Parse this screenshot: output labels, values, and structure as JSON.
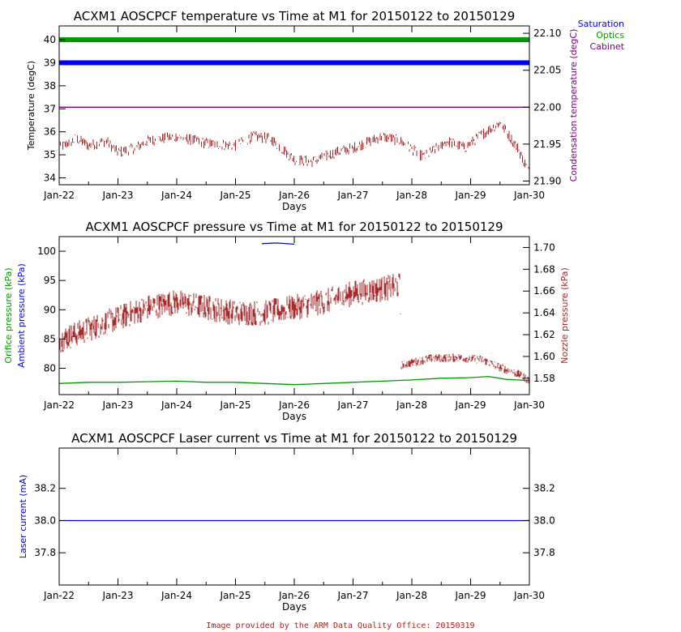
{
  "credit": "Image provided by the ARM Data Quality Office: 20150319",
  "chart_data": [
    {
      "type": "line",
      "title": "ACXM1 AOSCPCF temperature vs Time at M1 for 20150122 to 20150129",
      "xlabel": "Days",
      "ylabel": "Temperature (degC)",
      "y2label": "Condensation temperature (degC)",
      "ylim": [
        33.7,
        40.6
      ],
      "y2lim": [
        21.895,
        22.11
      ],
      "yticks": [
        34,
        35,
        36,
        37,
        38,
        39,
        40
      ],
      "y2ticks": [
        "21.90",
        "21.95",
        "22.00",
        "22.05",
        "22.10"
      ],
      "xlim": [
        0,
        8
      ],
      "xticks": [
        "Jan-22",
        "Jan-23",
        "Jan-24",
        "Jan-25",
        "Jan-26",
        "Jan-27",
        "Jan-28",
        "Jan-29",
        "Jan-30"
      ],
      "legend": [
        "Saturation",
        "Optics",
        "Cabinet"
      ],
      "legend_colors": [
        "#0000ff",
        "#009900",
        "#800080"
      ],
      "legend_position": "top-right outside",
      "grid": false,
      "series": [
        {
          "name": "Saturation",
          "color": "#0000ff",
          "axis": "left",
          "x": [
            0,
            1,
            2,
            3,
            4,
            5,
            6,
            7,
            8
          ],
          "y": [
            39.0,
            39.0,
            39.0,
            39.0,
            39.0,
            39.0,
            39.0,
            39.0,
            39.0
          ]
        },
        {
          "name": "Optics",
          "color": "#009900",
          "axis": "left",
          "x": [
            0,
            1,
            2,
            3,
            4,
            5,
            6,
            7,
            8
          ],
          "y": [
            40.0,
            40.0,
            40.0,
            40.0,
            40.0,
            40.0,
            40.0,
            40.0,
            40.0
          ]
        },
        {
          "name": "Cabinet",
          "color": "#a52a2a",
          "axis": "left",
          "x": [
            0,
            0.3,
            0.5,
            0.8,
            1.0,
            1.3,
            1.5,
            2.0,
            2.5,
            3.0,
            3.3,
            3.6,
            4.0,
            4.3,
            4.7,
            5.0,
            5.5,
            5.8,
            6.2,
            6.6,
            6.9,
            7.2,
            7.5,
            7.8,
            8.0
          ],
          "y": [
            35.3,
            35.7,
            35.4,
            35.6,
            35.1,
            35.3,
            35.6,
            35.8,
            35.5,
            35.4,
            35.8,
            35.7,
            34.8,
            34.7,
            35.1,
            35.3,
            35.8,
            35.6,
            34.9,
            35.6,
            35.3,
            35.9,
            36.4,
            35.3,
            34.2
          ]
        },
        {
          "name": "Condensation",
          "color": "#800080",
          "axis": "right",
          "x": [
            0,
            8
          ],
          "y": [
            22.0,
            22.0
          ]
        }
      ]
    },
    {
      "type": "line",
      "title": "ACXM1 AOSCPCF pressure vs Time at M1 for 20150122 to 20150129",
      "xlabel": "Days",
      "ylabel": "Orifice pressure (kPa)",
      "ylabel2": "Ambient pressure (kPa)",
      "y2label": "Nozzle pressure (kPa)",
      "ylim": [
        75.5,
        102.5
      ],
      "y2lim": [
        1.565,
        1.71
      ],
      "yticks": [
        80,
        85,
        90,
        95,
        100
      ],
      "y2ticks": [
        "1.58",
        "1.60",
        "1.62",
        "1.64",
        "1.66",
        "1.68",
        "1.70"
      ],
      "xlim": [
        0,
        8
      ],
      "xticks": [
        "Jan-22",
        "Jan-23",
        "Jan-24",
        "Jan-25",
        "Jan-26",
        "Jan-27",
        "Jan-28",
        "Jan-29",
        "Jan-30"
      ],
      "grid": false,
      "series": [
        {
          "name": "Ambient pressure",
          "color": "#0000ff",
          "axis": "left",
          "x": [
            3.45,
            3.7,
            4.0
          ],
          "y": [
            101.3,
            101.4,
            101.2
          ]
        },
        {
          "name": "Orifice pressure",
          "color": "#009900",
          "axis": "left",
          "x": [
            0,
            0.5,
            1.0,
            1.5,
            2.0,
            2.5,
            3.0,
            3.5,
            4.0,
            4.5,
            5.0,
            5.5,
            6.0,
            6.5,
            7.0,
            7.3,
            7.6,
            8.0
          ],
          "y": [
            77.4,
            77.6,
            77.6,
            77.7,
            77.8,
            77.6,
            77.6,
            77.4,
            77.2,
            77.4,
            77.6,
            77.8,
            78.0,
            78.3,
            78.4,
            78.6,
            78.1,
            77.9
          ]
        },
        {
          "name": "Nozzle pressure",
          "color": "#a52a2a",
          "axis": "right",
          "x": [
            0,
            0.5,
            1.0,
            1.5,
            2.0,
            2.5,
            3.0,
            3.5,
            4.0,
            4.5,
            5.0,
            5.5,
            5.8,
            5.82,
            6.3,
            6.8,
            7.2,
            7.5,
            7.8,
            8.0
          ],
          "y": [
            1.615,
            1.625,
            1.635,
            1.645,
            1.65,
            1.645,
            1.64,
            1.64,
            1.645,
            1.65,
            1.658,
            1.662,
            1.665,
            1.592,
            1.598,
            1.599,
            1.597,
            1.59,
            1.584,
            1.578
          ]
        }
      ]
    },
    {
      "type": "line",
      "title": "ACXM1 AOSCPCF Laser current vs Time at M1 for 20150122 to 20150129",
      "xlabel": "Days",
      "ylabel": "Laser current (mA)",
      "ylim": [
        37.6,
        38.45
      ],
      "yticks": [
        "37.8",
        "38.0",
        "38.2"
      ],
      "y2ticks": [
        "37.8",
        "38.0",
        "38.2"
      ],
      "xlim": [
        0,
        8
      ],
      "xticks": [
        "Jan-22",
        "Jan-23",
        "Jan-24",
        "Jan-25",
        "Jan-26",
        "Jan-27",
        "Jan-28",
        "Jan-29",
        "Jan-30"
      ],
      "grid": false,
      "series": [
        {
          "name": "Laser current",
          "color": "#0000cc",
          "axis": "left",
          "x": [
            0,
            8
          ],
          "y": [
            38.0,
            38.0
          ]
        }
      ]
    }
  ]
}
